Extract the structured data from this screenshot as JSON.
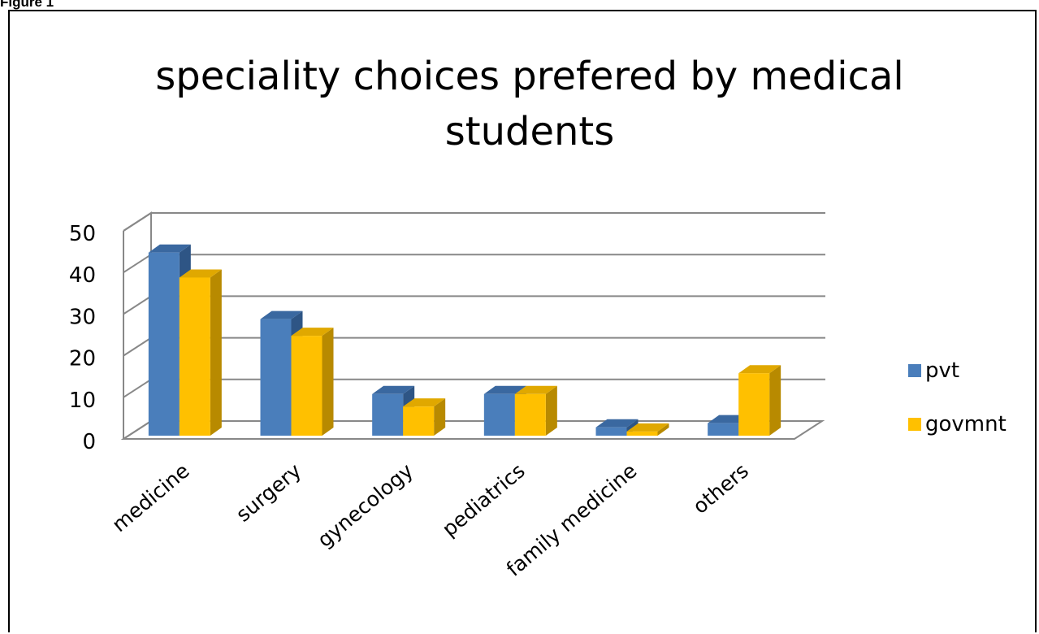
{
  "figure_label": "Figure 1",
  "colors": {
    "pvt": "#4a7ebb",
    "pvt_top": "#3a68a0",
    "pvt_side": "#2e5585",
    "govmnt": "#ffc000",
    "govmnt_top": "#e0a800",
    "govmnt_side": "#b88a00",
    "grid": "#888888"
  },
  "chart_data": {
    "type": "bar",
    "style": "3d-clustered",
    "title_lines": [
      "speciality choices prefered by medical",
      "students"
    ],
    "categories": [
      "medicine",
      "surgery",
      "gynecology",
      "pediatrics",
      "family medicine",
      "others"
    ],
    "series": [
      {
        "name": "pvt",
        "values": [
          44,
          28,
          10,
          10,
          2,
          3
        ]
      },
      {
        "name": "govmnt",
        "values": [
          38,
          24,
          7,
          10,
          1,
          15
        ]
      }
    ],
    "yticks": [
      "0",
      "10",
      "20",
      "30",
      "40",
      "50"
    ],
    "ylim": [
      0,
      50
    ],
    "grid": true,
    "legend_position": "right"
  }
}
